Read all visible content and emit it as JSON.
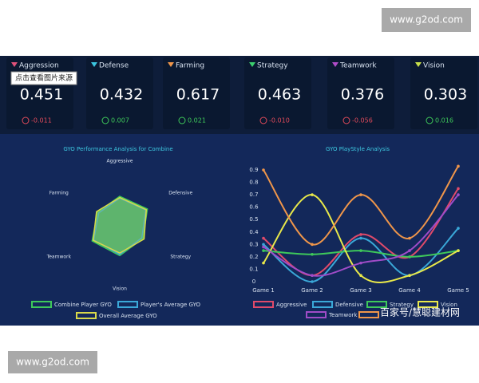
{
  "watermarks": [
    "www.g2od.com",
    "www.g2od.com"
  ],
  "tooltip": "点击查看图片来源",
  "overlay_text": "百家号/慧聪建材网",
  "cards": [
    {
      "label": "Aggression",
      "value": 0.451,
      "delta": "-0.011",
      "color": "#e0527a"
    },
    {
      "label": "Defense",
      "value": 0.432,
      "delta": "0.007",
      "color": "#3cc6e0"
    },
    {
      "label": "Farming",
      "value": 0.617,
      "delta": "0.021",
      "color": "#f0964a"
    },
    {
      "label": "Strategy",
      "value": 0.463,
      "delta": "-0.010",
      "color": "#3ccf6e"
    },
    {
      "label": "Teamwork",
      "value": 0.376,
      "delta": "-0.056",
      "color": "#b04cc8"
    },
    {
      "label": "Vision",
      "value": 0.303,
      "delta": "0.016",
      "color": "#c8e04a"
    }
  ],
  "chart_data": [
    {
      "type": "radar",
      "title": "GYO Performance Analysis for Combine",
      "axes": [
        "Aggressive",
        "Defensive",
        "Strategy",
        "Vision",
        "Teamwork",
        "Farming"
      ],
      "rlim": [
        0,
        1
      ],
      "series": [
        {
          "name": "Combine Player GYO",
          "color": "#3ec85a",
          "values": [
            0.45,
            0.5,
            0.42,
            0.48,
            0.5,
            0.4
          ]
        },
        {
          "name": "Player's Average GYO",
          "color": "#3aa8d8",
          "values": [
            0.42,
            0.47,
            0.4,
            0.46,
            0.47,
            0.38
          ]
        },
        {
          "name": "Overall Average GYO",
          "color": "#d8d84a",
          "values": [
            0.43,
            0.48,
            0.44,
            0.44,
            0.48,
            0.42
          ]
        }
      ]
    },
    {
      "type": "line",
      "title": "GYO PlayStyle Analysis",
      "categories": [
        "Game 1",
        "Game 2",
        "Game 3",
        "Game 4",
        "Game 5"
      ],
      "ylim": [
        0,
        1
      ],
      "yticks": [
        0,
        0.1,
        0.2,
        0.3,
        0.4,
        0.5,
        0.6,
        0.7,
        0.8,
        0.9
      ],
      "smooth": true,
      "series": [
        {
          "name": "Aggressive",
          "color": "#e04a6a",
          "values": [
            0.35,
            0.05,
            0.38,
            0.2,
            0.75
          ]
        },
        {
          "name": "Defensive",
          "color": "#3aa8d8",
          "values": [
            0.3,
            0.0,
            0.35,
            0.05,
            0.43
          ]
        },
        {
          "name": "Strategy",
          "color": "#3ec85a",
          "values": [
            0.25,
            0.22,
            0.25,
            0.2,
            0.25
          ]
        },
        {
          "name": "Vision",
          "color": "#e8e84a",
          "values": [
            0.15,
            0.7,
            0.05,
            0.05,
            0.25
          ]
        },
        {
          "name": "Teamwork",
          "color": "#a04cc8",
          "values": [
            0.28,
            0.05,
            0.15,
            0.25,
            0.7
          ]
        },
        {
          "color": "#f0964a",
          "values": [
            0.9,
            0.3,
            0.7,
            0.35,
            0.93
          ]
        }
      ]
    }
  ]
}
